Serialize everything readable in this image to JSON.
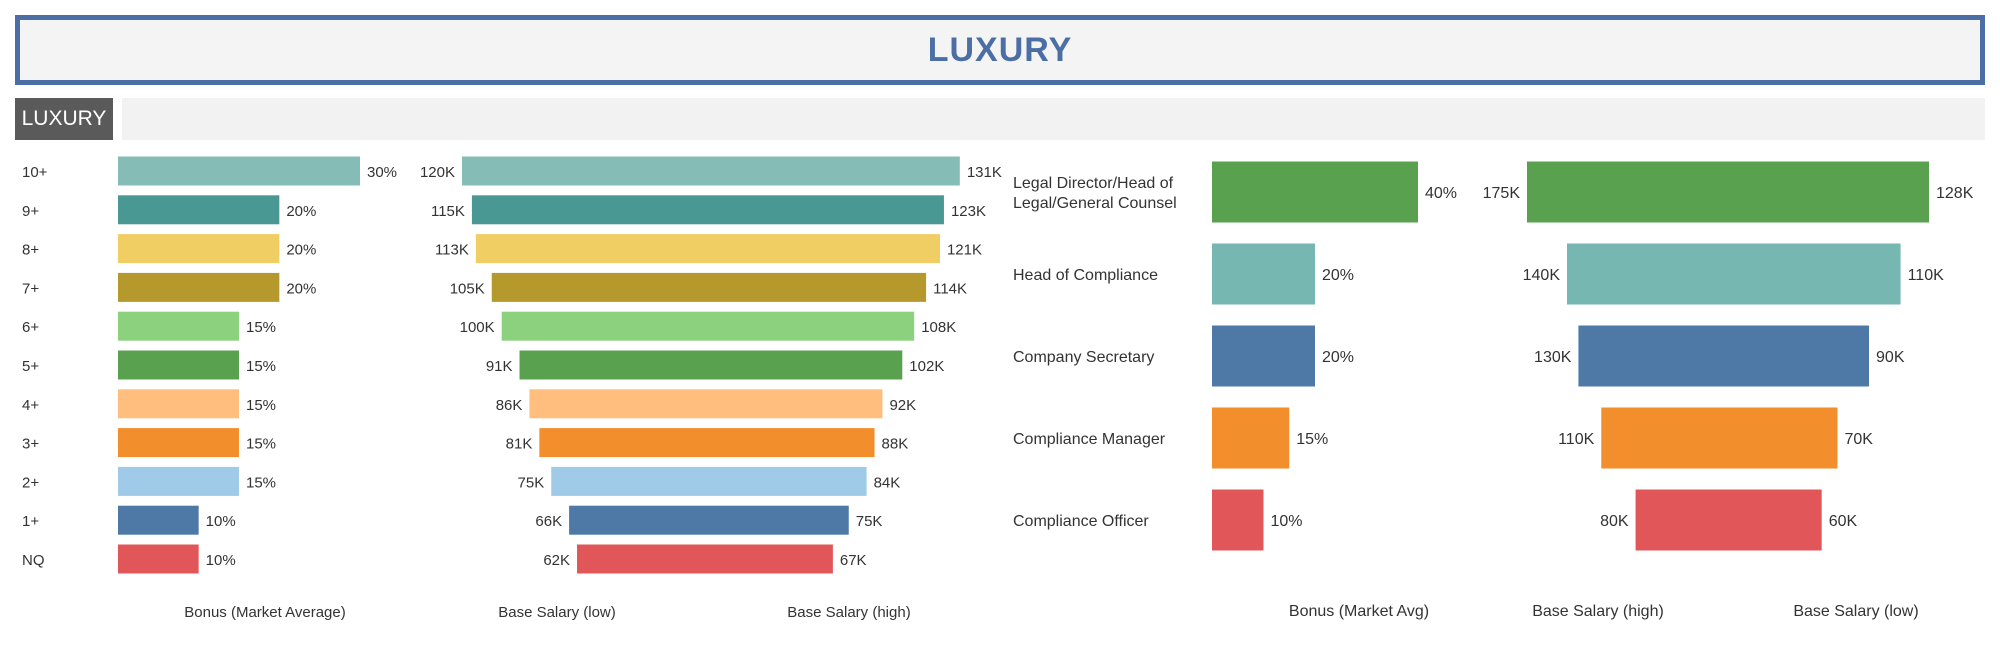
{
  "title": "LUXURY",
  "section_tag": "LUXURY",
  "colors": {
    "banner_border": "#4b6fa4",
    "banner_text": "#4b6fa4",
    "tag_bg": "#5a5a5a"
  },
  "chart_data": [
    {
      "type": "bar",
      "orientation": "horizontal",
      "categories": [
        "10+",
        "9+",
        "8+",
        "7+",
        "6+",
        "5+",
        "4+",
        "3+",
        "2+",
        "1+",
        "NQ"
      ],
      "colors": [
        "#86bcb6",
        "#499894",
        "#f1ce63",
        "#b6992d",
        "#8cd17d",
        "#59a14f",
        "#ffbe7d",
        "#f28e2b",
        "#a0cbe8",
        "#4e79a7",
        "#e15759"
      ],
      "series": [
        {
          "name": "Bonus (Market Average)",
          "values": [
            30,
            20,
            20,
            20,
            15,
            15,
            15,
            15,
            15,
            10,
            10
          ],
          "labels": [
            "30%",
            "20%",
            "20%",
            "20%",
            "15%",
            "15%",
            "15%",
            "15%",
            "15%",
            "10%",
            "10%"
          ]
        }
      ],
      "xlabel": "Bonus (Market Average)"
    },
    {
      "type": "bar",
      "orientation": "horizontal-diverging",
      "categories": [
        "10+",
        "9+",
        "8+",
        "7+",
        "6+",
        "5+",
        "4+",
        "3+",
        "2+",
        "1+",
        "NQ"
      ],
      "series": [
        {
          "name": "Base Salary (low)",
          "values": [
            120,
            115,
            113,
            105,
            100,
            91,
            86,
            81,
            75,
            66,
            62
          ],
          "labels": [
            "120K",
            "115K",
            "113K",
            "105K",
            "100K",
            "91K",
            "86K",
            "81K",
            "75K",
            "66K",
            "62K"
          ]
        },
        {
          "name": "Base Salary (high)",
          "values": [
            131,
            123,
            121,
            114,
            108,
            102,
            92,
            88,
            84,
            75,
            67
          ],
          "labels": [
            "131K",
            "123K",
            "121K",
            "114K",
            "108K",
            "102K",
            "92K",
            "88K",
            "84K",
            "75K",
            "67K"
          ]
        }
      ],
      "xlabels": [
        "Base Salary (low)",
        "Base Salary (high)"
      ]
    },
    {
      "type": "bar",
      "orientation": "horizontal",
      "categories": [
        "Legal Director/Head of Legal/General Counsel",
        "Head of Compliance",
        "Company Secretary",
        "Compliance Manager",
        "Compliance Officer"
      ],
      "category_lines": [
        [
          "Legal Director/Head of",
          "Legal/General Counsel"
        ],
        [
          "Head of Compliance"
        ],
        [
          "Company Secretary"
        ],
        [
          "Compliance Manager"
        ],
        [
          "Compliance Officer"
        ]
      ],
      "colors": [
        "#59a14f",
        "#76b7b2",
        "#4e79a7",
        "#f28e2b",
        "#e15759"
      ],
      "series": [
        {
          "name": "Bonus (Market Avg)",
          "values": [
            40,
            20,
            20,
            15,
            10
          ],
          "labels": [
            "40%",
            "20%",
            "20%",
            "15%",
            "10%"
          ]
        }
      ],
      "xlabel": "Bonus (Market Avg)"
    },
    {
      "type": "bar",
      "orientation": "horizontal-diverging",
      "categories": [
        "Legal Director/Head of Legal/General Counsel",
        "Head of Compliance",
        "Company Secretary",
        "Compliance Manager",
        "Compliance Officer"
      ],
      "series": [
        {
          "name": "Base Salary (high)",
          "values": [
            175,
            140,
            130,
            110,
            80
          ],
          "labels": [
            "175K",
            "140K",
            "130K",
            "110K",
            "80K"
          ]
        },
        {
          "name": "Base Salary (low)",
          "values": [
            128,
            110,
            90,
            70,
            60
          ],
          "labels": [
            "128K",
            "110K",
            "90K",
            "70K",
            "60K"
          ]
        }
      ],
      "xlabels": [
        "Base Salary (high)",
        "Base Salary (low)"
      ]
    }
  ]
}
